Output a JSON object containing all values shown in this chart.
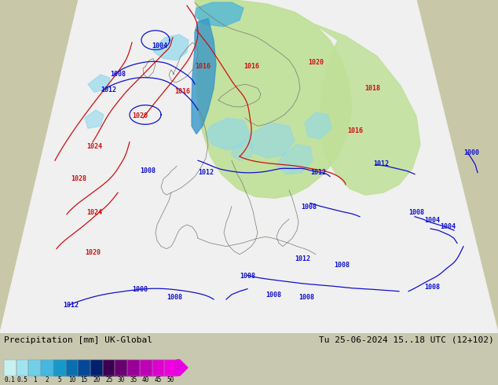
{
  "title_left": "Precipitation [mm] UK-Global",
  "title_right": "Tu 25-06-2024 15..18 UTC (12+102)",
  "colorbar_values": [
    "0.1",
    "0.5",
    "1",
    "2",
    "5",
    "10",
    "15",
    "20",
    "25",
    "30",
    "35",
    "40",
    "45",
    "50"
  ],
  "colorbar_colors": [
    "#c8f0f0",
    "#a0e4f0",
    "#70d0e8",
    "#44b8e0",
    "#1898c8",
    "#0870b0",
    "#044898",
    "#022070",
    "#3c0050",
    "#680070",
    "#980098",
    "#c000b8",
    "#e000d0",
    "#f000e0"
  ],
  "bg_ocean_color": "#b0b0a0",
  "bg_land_color": "#c8c8a8",
  "white_forecast_color": "#f0f0f0",
  "green_area_color": "#c0e098",
  "cyan_heavy": "#50b8d8",
  "cyan_light": "#90d8ec",
  "blue_contour": "#1010cc",
  "red_contour": "#cc1010",
  "gray_border": "#787870",
  "bottom_bg": "#c8c8b0",
  "font_color": "#000000",
  "label_fontsize": 6.0,
  "title_fontsize": 8.0,
  "contour_lw": 0.9,
  "figsize": [
    6.34,
    4.9
  ],
  "dpi": 100
}
